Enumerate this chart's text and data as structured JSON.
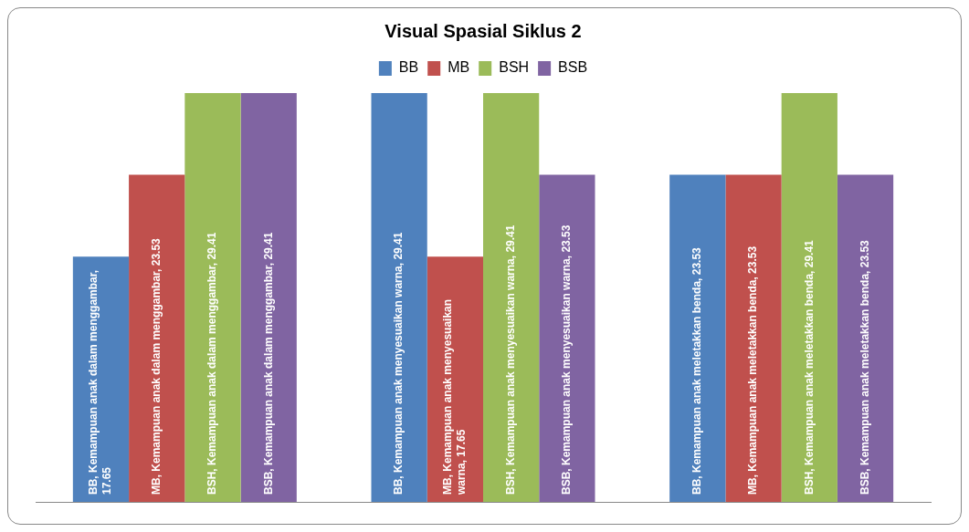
{
  "chart_data": {
    "type": "bar",
    "title": "Visual Spasial Siklus 2",
    "categories": [
      null,
      null,
      null
    ],
    "series": [
      {
        "name": "BB",
        "color": "#4f81bd",
        "values": [
          17.65,
          29.41,
          23.53
        ],
        "value_labels": [
          "BB, Kemampuan anak dalam menggambar, 17.65",
          "BB, Kemampuan anak menyesuaikan warna, 29.41",
          "BB, Kemampuan anak meletakkan benda, 23.53"
        ]
      },
      {
        "name": "MB",
        "color": "#c0504d",
        "values": [
          23.53,
          17.65,
          23.53
        ],
        "value_labels": [
          "MB, Kemampuan anak dalam menggambar, 23.53",
          "MB, Kemampuan anak menyesuaikan warna, 17.65",
          "MB, Kemampuan anak meletakkan benda, 23.53"
        ]
      },
      {
        "name": "BSH",
        "color": "#9bbb59",
        "values": [
          29.41,
          29.41,
          29.41
        ],
        "value_labels": [
          "BSH, Kemampuan anak dalam menggambar, 29.41",
          "BSH, Kemampuan anak menyesuaikan warna, 29.41",
          "BSH, Kemampuan anak meletakkan benda, 29.41"
        ]
      },
      {
        "name": "BSB",
        "color": "#8064a2",
        "values": [
          29.41,
          23.53,
          23.53
        ],
        "value_labels": [
          "BSB, Kemampuan anak dalam menggambar, 29.41",
          "BSB, Kemampuan anak menyesuaikan warna, 23.53",
          "BSB, Kemampuan anak meletakkan benda, 23.53"
        ]
      }
    ],
    "legend": "top",
    "grid": false,
    "tick_labels": false
  }
}
